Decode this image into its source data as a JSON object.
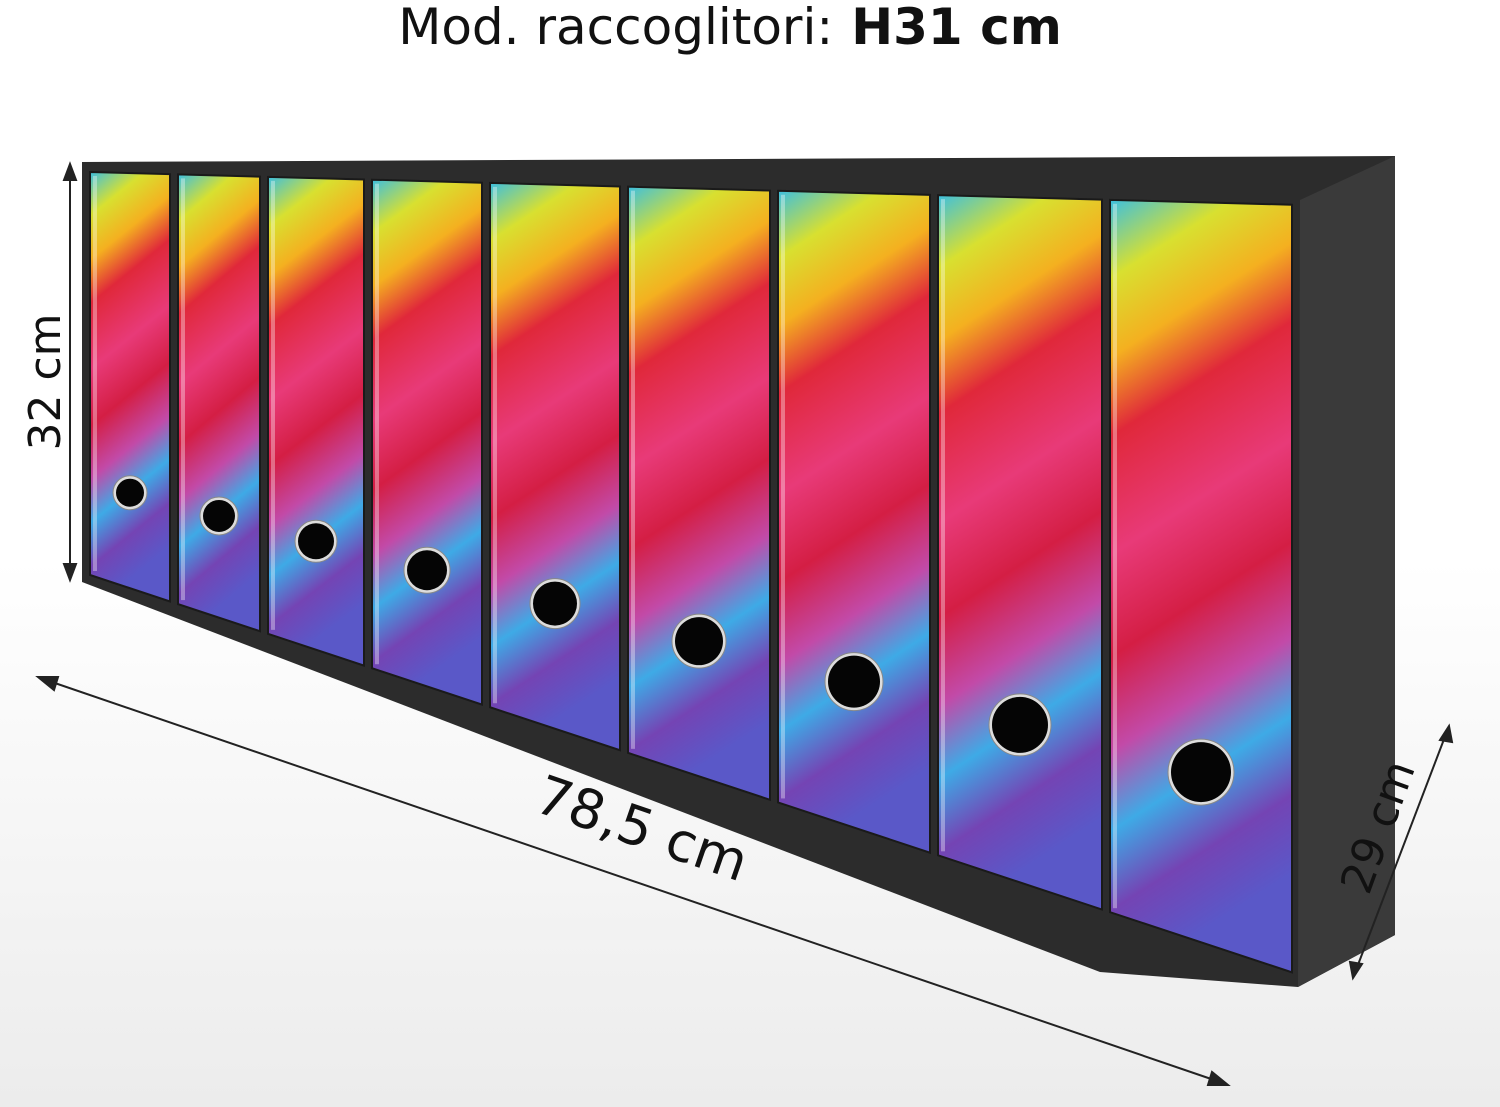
{
  "title": {
    "prefix": "Mod. raccoglitori:",
    "height": "H31 cm"
  },
  "dimensions": {
    "height": "32 cm",
    "width": "78,5 cm",
    "depth": "29 cm"
  }
}
